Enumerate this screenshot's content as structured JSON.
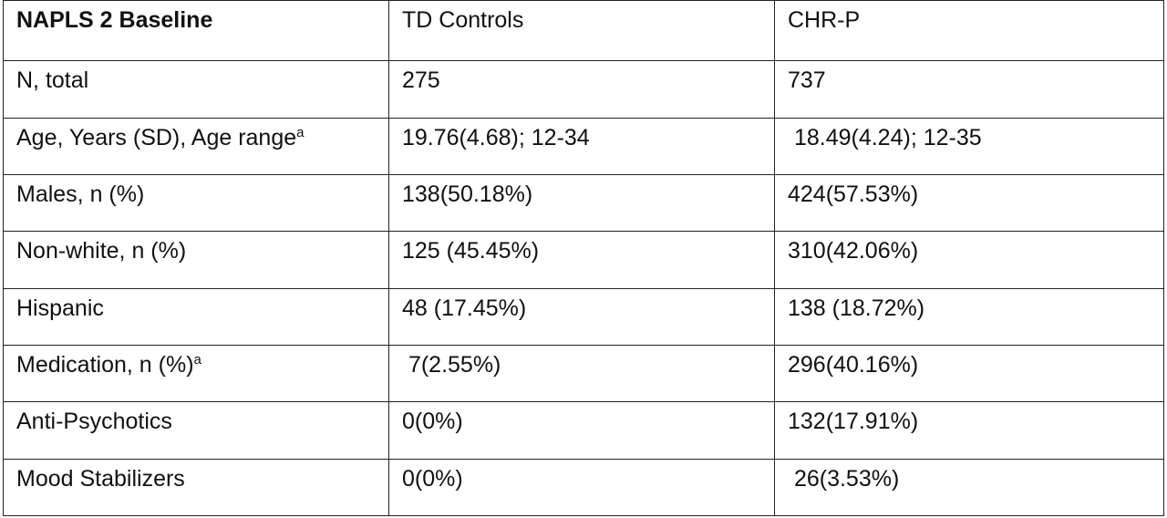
{
  "table": {
    "headers": [
      "NAPLS 2 Baseline",
      "TD Controls",
      "CHR-P"
    ],
    "rows": [
      {
        "label": "N, total",
        "sup": "",
        "td": "275",
        "chr": "737"
      },
      {
        "label": "Age, Years (SD), Age range",
        "sup": "a",
        "td": "19.76(4.68); 12-34",
        "chr": " 18.49(4.24); 12-35"
      },
      {
        "label": "Males, n (%)",
        "sup": "",
        "td": "138(50.18%)",
        "chr": "424(57.53%)"
      },
      {
        "label": "Non-white, n (%)",
        "sup": "",
        "td": "125 (45.45%)",
        "chr": "310(42.06%)"
      },
      {
        "label": "Hispanic",
        "sup": "",
        "td": "48 (17.45%)",
        "chr": "138 (18.72%)"
      },
      {
        "label": "Medication, n (%)",
        "sup": "a",
        "td": " 7(2.55%)",
        "chr": "296(40.16%)"
      },
      {
        "label": "Anti-Psychotics",
        "sup": "",
        "td": "0(0%)",
        "chr": "132(17.91%)"
      },
      {
        "label": "Mood Stabilizers",
        "sup": "",
        "td": "0(0%)",
        "chr": " 26(3.53%)"
      }
    ]
  }
}
